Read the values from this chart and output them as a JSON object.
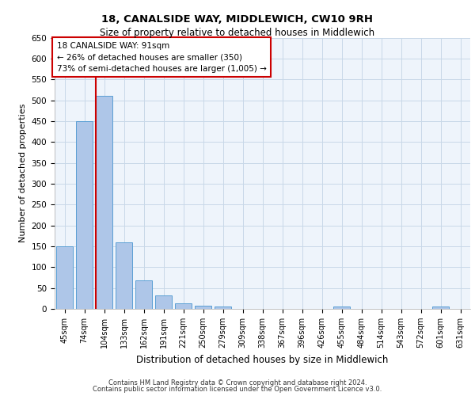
{
  "title": "18, CANALSIDE WAY, MIDDLEWICH, CW10 9RH",
  "subtitle": "Size of property relative to detached houses in Middlewich",
  "xlabel": "Distribution of detached houses by size in Middlewich",
  "ylabel": "Number of detached properties",
  "categories": [
    "45sqm",
    "74sqm",
    "104sqm",
    "133sqm",
    "162sqm",
    "191sqm",
    "221sqm",
    "250sqm",
    "279sqm",
    "309sqm",
    "338sqm",
    "367sqm",
    "396sqm",
    "426sqm",
    "455sqm",
    "484sqm",
    "514sqm",
    "543sqm",
    "572sqm",
    "601sqm",
    "631sqm"
  ],
  "values": [
    150,
    450,
    510,
    160,
    68,
    32,
    13,
    8,
    5,
    0,
    0,
    0,
    0,
    0,
    5,
    0,
    0,
    0,
    0,
    5,
    0
  ],
  "bar_color": "#aec6e8",
  "bar_edgecolor": "#5a9fd4",
  "annotation_text": "18 CANALSIDE WAY: 91sqm\n← 26% of detached houses are smaller (350)\n73% of semi-detached houses are larger (1,005) →",
  "annotation_box_color": "#cc0000",
  "ylim": [
    0,
    650
  ],
  "yticks": [
    0,
    50,
    100,
    150,
    200,
    250,
    300,
    350,
    400,
    450,
    500,
    550,
    600,
    650
  ],
  "grid_color": "#c8d8e8",
  "background_color": "#eef4fb",
  "footer1": "Contains HM Land Registry data © Crown copyright and database right 2024.",
  "footer2": "Contains public sector information licensed under the Open Government Licence v3.0."
}
